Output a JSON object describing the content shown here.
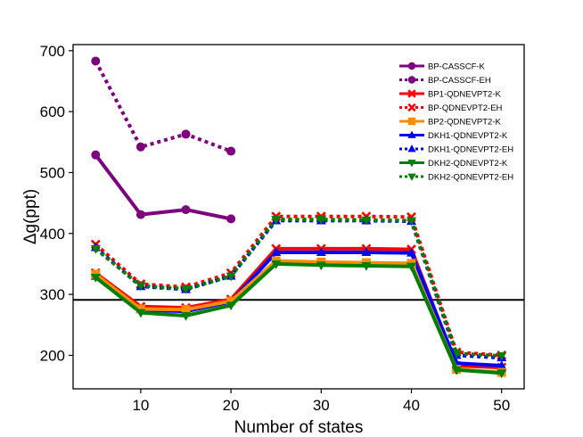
{
  "chart_data": {
    "type": "line",
    "title": "",
    "xlabel": "Number of states",
    "ylabel": "Δg(ppt)",
    "x": [
      5,
      10,
      15,
      20,
      25,
      30,
      35,
      40,
      45,
      50
    ],
    "xlim": [
      2.5,
      52.5
    ],
    "ylim": [
      145,
      710
    ],
    "xticks": [
      10,
      20,
      30,
      40,
      50
    ],
    "yticks": [
      200,
      300,
      400,
      500,
      600,
      700
    ],
    "grid": false,
    "legend_position": "top-right",
    "reference_line": {
      "y": 291,
      "color": "#000000"
    },
    "series": [
      {
        "name": "BP-CASSCF-K",
        "color": "#7f007f",
        "style": "solid",
        "marker": "circle",
        "values": [
          529,
          431,
          439,
          424,
          null,
          null,
          null,
          null,
          null,
          null
        ]
      },
      {
        "name": "BP-CASSCF-EH",
        "color": "#7f007f",
        "style": "dotted",
        "marker": "circle",
        "values": [
          683,
          542,
          563,
          535,
          null,
          null,
          null,
          null,
          null,
          null
        ]
      },
      {
        "name": "BP1-QDNEVPT2-K",
        "color": "#ff0000",
        "style": "solid",
        "marker": "x",
        "values": [
          335,
          280,
          278,
          292,
          375,
          375,
          375,
          374,
          183,
          180
        ]
      },
      {
        "name": "BP-QDNEVPT2-EH",
        "color": "#ff0000",
        "style": "dotted",
        "marker": "x",
        "values": [
          382,
          317,
          312,
          335,
          428,
          428,
          428,
          427,
          205,
          200
        ]
      },
      {
        "name": "BP2-QDNEVPT2-K",
        "color": "#ff8c00",
        "style": "solid",
        "marker": "square",
        "values": [
          333,
          276,
          275,
          289,
          355,
          353,
          352,
          351,
          177,
          172
        ]
      },
      {
        "name": "DKH1-QDNEVPT2-K",
        "color": "#0000ff",
        "style": "solid",
        "marker": "triangle-up",
        "values": [
          330,
          275,
          272,
          288,
          369,
          369,
          369,
          368,
          187,
          183
        ]
      },
      {
        "name": "DKH1-QDNEVPT2-EH",
        "color": "#0000ff",
        "style": "dotted",
        "marker": "triangle-up",
        "values": [
          377,
          313,
          308,
          330,
          421,
          421,
          421,
          420,
          200,
          196
        ]
      },
      {
        "name": "DKH2-QDNEVPT2-K",
        "color": "#008000",
        "style": "solid",
        "marker": "triangle-down",
        "values": [
          328,
          270,
          265,
          282,
          350,
          348,
          347,
          346,
          176,
          171
        ]
      },
      {
        "name": "DKH2-QDNEVPT2-EH",
        "color": "#008000",
        "style": "dotted",
        "marker": "triangle-down",
        "values": [
          375,
          314,
          309,
          330,
          423,
          423,
          422,
          421,
          203,
          199
        ]
      }
    ]
  }
}
